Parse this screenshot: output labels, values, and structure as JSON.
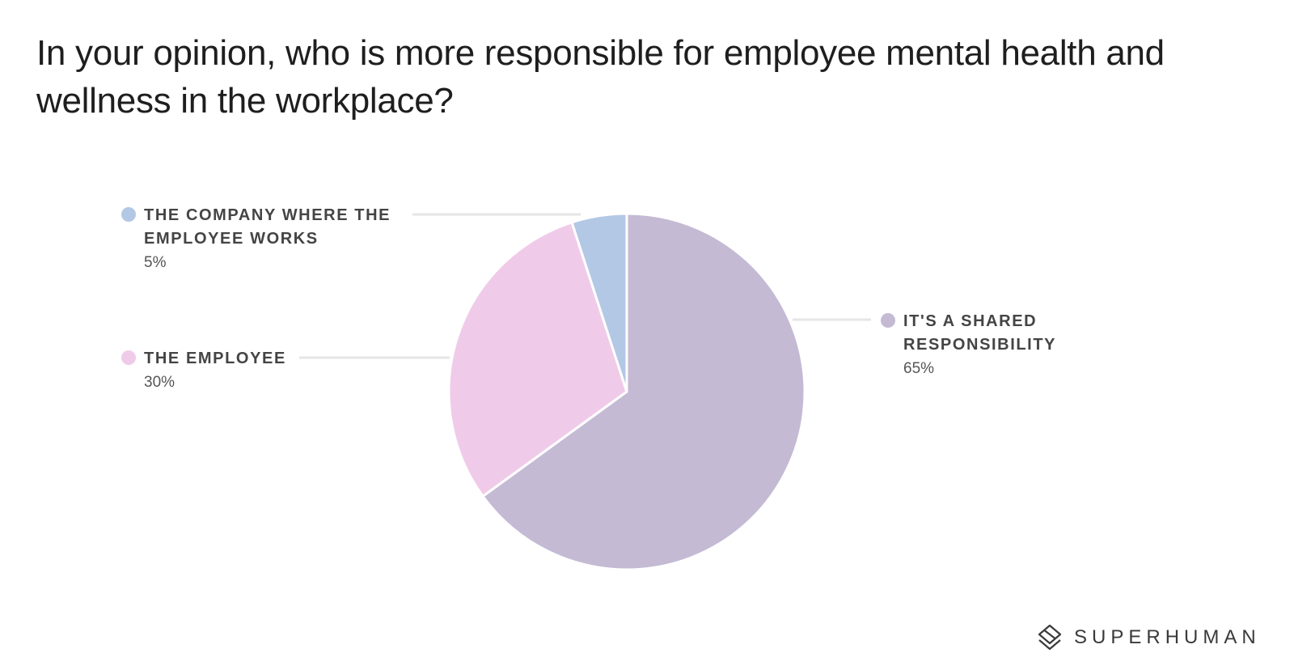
{
  "chart_data": {
    "type": "pie",
    "title": "In your opinion, who is more responsible for employee mental health and wellness in the workplace?",
    "slices": [
      {
        "label": "THE COMPANY WHERE THE EMPLOYEE WORKS",
        "label_lines": [
          "THE COMPANY WHERE THE",
          "EMPLOYEE WORKS"
        ],
        "value": 5,
        "display": "5%",
        "color": "#b3c8e5"
      },
      {
        "label": "THE EMPLOYEE",
        "label_lines": [
          "THE EMPLOYEE"
        ],
        "value": 30,
        "display": "30%",
        "color": "#f0cbe9"
      },
      {
        "label": "IT'S A SHARED RESPONSIBILITY",
        "label_lines": [
          "IT'S A SHARED",
          "RESPONSIBILITY"
        ],
        "value": 65,
        "display": "65%",
        "color": "#c4bad4"
      }
    ],
    "legend_placement": "beside-slices"
  },
  "brand": {
    "name": "SUPERHUMAN",
    "icon": "superhuman-logo-icon"
  }
}
